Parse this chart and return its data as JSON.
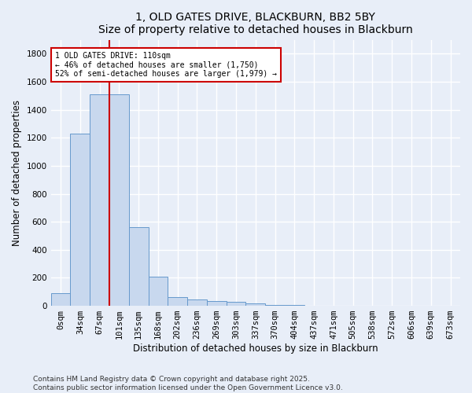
{
  "title_line1": "1, OLD GATES DRIVE, BLACKBURN, BB2 5BY",
  "title_line2": "Size of property relative to detached houses in Blackburn",
  "xlabel": "Distribution of detached houses by size in Blackburn",
  "ylabel": "Number of detached properties",
  "bar_color": "#c8d8ee",
  "bar_edge_color": "#6699cc",
  "categories": [
    "0sqm",
    "34sqm",
    "67sqm",
    "101sqm",
    "135sqm",
    "168sqm",
    "202sqm",
    "236sqm",
    "269sqm",
    "303sqm",
    "337sqm",
    "370sqm",
    "404sqm",
    "437sqm",
    "471sqm",
    "505sqm",
    "538sqm",
    "572sqm",
    "606sqm",
    "639sqm",
    "673sqm"
  ],
  "values": [
    90,
    1230,
    1510,
    1510,
    560,
    210,
    65,
    45,
    35,
    28,
    15,
    8,
    5,
    2,
    1,
    0,
    0,
    0,
    0,
    0,
    0
  ],
  "ylim": [
    0,
    1900
  ],
  "yticks": [
    0,
    200,
    400,
    600,
    800,
    1000,
    1200,
    1400,
    1600,
    1800
  ],
  "property_line_x": 2.5,
  "annotation_text": "1 OLD GATES DRIVE: 110sqm\n← 46% of detached houses are smaller (1,750)\n52% of semi-detached houses are larger (1,979) →",
  "annotation_box_color": "#ffffff",
  "annotation_box_edge": "#cc0000",
  "annotation_line_color": "#cc0000",
  "footer_line1": "Contains HM Land Registry data © Crown copyright and database right 2025.",
  "footer_line2": "Contains public sector information licensed under the Open Government Licence v3.0.",
  "background_color": "#e8eef8",
  "plot_background": "#e8eef8",
  "grid_color": "#ffffff",
  "title_fontsize": 10,
  "axis_label_fontsize": 8.5,
  "tick_fontsize": 7.5,
  "annotation_fontsize": 7,
  "footer_fontsize": 6.5
}
